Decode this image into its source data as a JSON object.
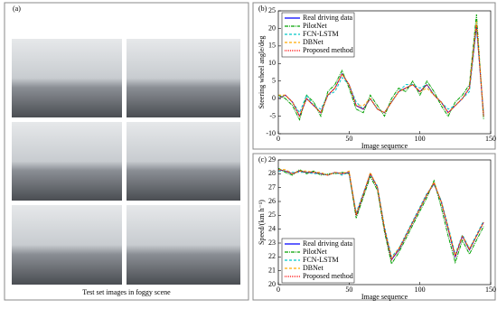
{
  "panel_a": {
    "label": "(a)",
    "caption": "Test set images in foggy scene"
  },
  "chart_data": [
    {
      "type": "line",
      "label": "(b)",
      "x_label": "Image sequence",
      "y_label": "Steering wheel angle/deg",
      "xlim": [
        0,
        150
      ],
      "xticks": [
        0,
        50,
        100,
        150
      ],
      "ylim": [
        -10,
        25
      ],
      "yticks": [
        -10,
        -5,
        0,
        5,
        10,
        15,
        20,
        25
      ],
      "legend": "upper left",
      "x": [
        0,
        5,
        10,
        15,
        20,
        25,
        30,
        35,
        40,
        45,
        50,
        55,
        60,
        65,
        70,
        75,
        80,
        85,
        90,
        95,
        100,
        105,
        110,
        115,
        120,
        125,
        130,
        135,
        140,
        145
      ],
      "series": [
        {
          "name": "Real driving data",
          "color": "#0000ff",
          "dash": "",
          "values": [
            0,
            1,
            -1,
            -5,
            0,
            -2,
            -4,
            1,
            3,
            7,
            4,
            -2,
            -3,
            0,
            -3,
            -4,
            -1,
            2,
            3,
            4,
            2,
            4,
            1,
            -1,
            -4,
            -2,
            0,
            3,
            21,
            -5
          ]
        },
        {
          "name": "PilotNet",
          "color": "#00a000",
          "dash": "4 1 1 1",
          "values": [
            1,
            0,
            -2,
            -6,
            1,
            -1,
            -5,
            2,
            4,
            8,
            3,
            -3,
            -4,
            1,
            -2,
            -5,
            0,
            3,
            2,
            5,
            1,
            5,
            2,
            -2,
            -5,
            -1,
            1,
            4,
            24,
            -6
          ]
        },
        {
          "name": "FCN-LSTM",
          "color": "#00c8c8",
          "dash": "3 2",
          "values": [
            0,
            1,
            -1,
            -4,
            1,
            -2,
            -3,
            1,
            2,
            6,
            4,
            -1,
            -3,
            0,
            -3,
            -4,
            -1,
            2,
            4,
            4,
            3,
            4,
            1,
            -1,
            -3,
            -2,
            0,
            2,
            20,
            -4
          ]
        },
        {
          "name": "DBNet",
          "color": "#ffaa00",
          "dash": "3 2",
          "values": [
            1,
            1,
            -1,
            -5,
            0,
            -2,
            -4,
            1,
            3,
            7,
            4,
            -2,
            -2,
            0,
            -3,
            -4,
            -1,
            2,
            3,
            4,
            2,
            3,
            1,
            -1,
            -4,
            -2,
            0,
            3,
            22,
            -5
          ]
        },
        {
          "name": "Proposed method",
          "color": "#ff0000",
          "dash": "1 1",
          "values": [
            0,
            1,
            -1,
            -5,
            0,
            -2,
            -4,
            1,
            3,
            7,
            4,
            -2,
            -3,
            0,
            -3,
            -4,
            -1,
            2,
            3,
            4,
            2,
            4,
            1,
            -1,
            -4,
            -2,
            0,
            3,
            21,
            -5
          ]
        }
      ]
    },
    {
      "type": "line",
      "label": "(c)",
      "x_label": "Image sequence",
      "y_label": "Speed/(km h⁻¹)",
      "xlim": [
        0,
        150
      ],
      "xticks": [
        0,
        50,
        100,
        150
      ],
      "ylim": [
        20,
        29
      ],
      "yticks": [
        20,
        21,
        22,
        23,
        24,
        25,
        26,
        27,
        28,
        29
      ],
      "legend": "lower left",
      "x": [
        0,
        5,
        10,
        15,
        20,
        25,
        30,
        35,
        40,
        45,
        50,
        55,
        60,
        65,
        70,
        75,
        80,
        85,
        90,
        95,
        100,
        105,
        110,
        115,
        120,
        125,
        130,
        135,
        140,
        145
      ],
      "series": [
        {
          "name": "Real driving data",
          "color": "#0000ff",
          "dash": "",
          "values": [
            28.3,
            28.2,
            28,
            28.2,
            28.1,
            28.1,
            28,
            27.9,
            28.1,
            28,
            28.1,
            25,
            26.5,
            28,
            27,
            24,
            21.8,
            22.5,
            23.5,
            24.5,
            25.5,
            26.5,
            27.3,
            26,
            24,
            22,
            23.5,
            22.5,
            23.5,
            24.5
          ]
        },
        {
          "name": "PilotNet",
          "color": "#00a000",
          "dash": "4 1 1 1",
          "values": [
            28.4,
            28.1,
            27.9,
            28.3,
            28,
            28.2,
            27.9,
            28,
            28,
            28.1,
            28,
            24.8,
            26.3,
            27.8,
            26.8,
            23.8,
            21.5,
            22.3,
            23.3,
            24.3,
            25.3,
            26.3,
            27.5,
            25.6,
            23.5,
            21.6,
            23.2,
            22.2,
            23.2,
            24.2
          ]
        },
        {
          "name": "FCN-LSTM",
          "color": "#00c8c8",
          "dash": "3 2",
          "values": [
            28.2,
            28.2,
            28.1,
            28.1,
            28.1,
            28,
            28,
            27.9,
            28.1,
            27.9,
            28.1,
            25.2,
            26.6,
            28,
            27.1,
            24.2,
            22,
            22.6,
            23.6,
            24.6,
            25.6,
            26.6,
            27.2,
            26.1,
            24.2,
            22.2,
            23.6,
            22.6,
            23.6,
            24.6
          ]
        },
        {
          "name": "DBNet",
          "color": "#ffaa00",
          "dash": "3 2",
          "values": [
            28.3,
            28.3,
            28,
            28.2,
            28.2,
            28.1,
            28.1,
            27.9,
            28.1,
            28,
            28.2,
            25.1,
            26.5,
            28.1,
            27,
            24.1,
            21.9,
            22.6,
            23.5,
            24.5,
            25.5,
            26.5,
            27.4,
            26,
            24.1,
            22.1,
            23.5,
            22.6,
            23.5,
            24.5
          ]
        },
        {
          "name": "Proposed method",
          "color": "#ff0000",
          "dash": "1 1",
          "values": [
            28.3,
            28.2,
            28,
            28.2,
            28.1,
            28.1,
            28,
            27.9,
            28.1,
            28,
            28.1,
            25,
            26.5,
            28,
            27,
            24,
            21.8,
            22.5,
            23.5,
            24.5,
            25.5,
            26.5,
            27.3,
            26,
            24,
            22,
            23.5,
            22.5,
            23.5,
            24.5
          ]
        }
      ]
    }
  ]
}
